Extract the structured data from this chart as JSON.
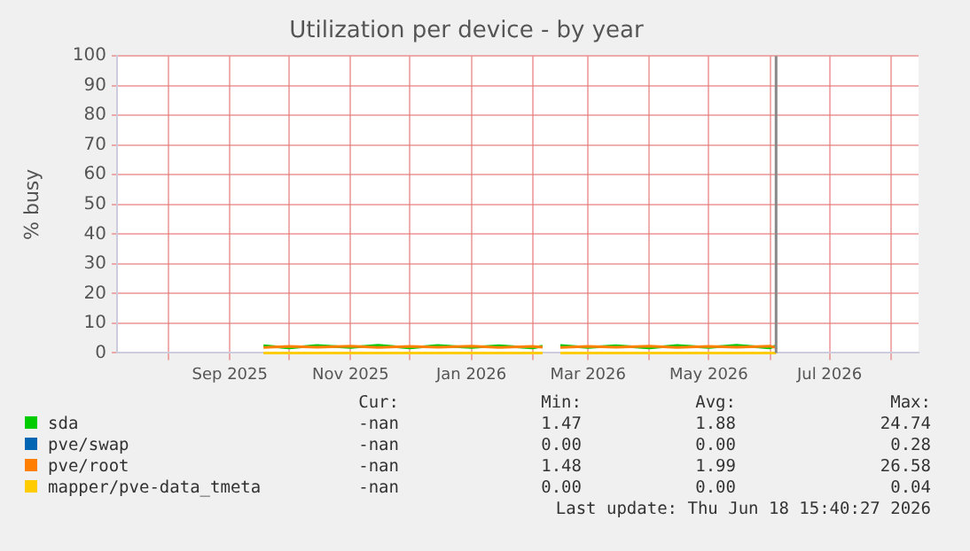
{
  "chart_data": {
    "type": "line",
    "title": "Utilization per device - by year",
    "ylabel": "% busy",
    "x": [
      "2025-09-18",
      "2025-10-01",
      "2025-10-15",
      "2025-11-01",
      "2025-11-15",
      "2025-12-01",
      "2025-12-15",
      "2026-01-01",
      "2026-01-15",
      "2026-02-01",
      "2026-02-06",
      "2026-02-10",
      "2026-02-15",
      "2026-03-01",
      "2026-03-15",
      "2026-04-01",
      "2026-04-15",
      "2026-05-01",
      "2026-05-15",
      "2026-06-01",
      "2026-06-04"
    ],
    "series": [
      {
        "name": "sda",
        "color": "#00cc00",
        "values": [
          2.4,
          1.7,
          2.5,
          1.8,
          2.6,
          1.7,
          2.5,
          1.8,
          2.4,
          1.7,
          2.3,
          null,
          2.5,
          1.8,
          2.4,
          1.7,
          2.5,
          1.8,
          2.6,
          1.7,
          2.4
        ]
      },
      {
        "name": "pve/swap",
        "color": "#0066b3",
        "values": [
          null,
          null,
          null,
          null,
          null,
          null,
          null,
          null,
          null,
          null,
          null,
          null,
          null,
          null,
          null,
          null,
          null,
          null,
          null,
          null,
          null
        ]
      },
      {
        "name": "pve/root",
        "color": "#ff8000",
        "values": [
          1.8,
          2.2,
          1.9,
          2.3,
          1.8,
          2.2,
          1.9,
          2.3,
          1.8,
          2.2,
          1.9,
          null,
          1.8,
          2.2,
          1.9,
          2.3,
          1.8,
          2.2,
          1.9,
          2.3,
          1.8
        ]
      },
      {
        "name": "mapper/pve-data_tmeta",
        "color": "#ffcc00",
        "values": [
          0,
          0,
          0,
          0,
          0,
          0,
          0,
          0,
          0,
          0,
          0,
          null,
          0,
          0,
          0,
          0,
          0,
          0,
          0,
          0,
          0
        ]
      }
    ],
    "xlim": [
      "2025-07-06",
      "2026-08-15"
    ],
    "xticks": [
      {
        "value": "2025-08-01",
        "label": null
      },
      {
        "value": "2025-09-01",
        "label": "Sep 2025"
      },
      {
        "value": "2025-10-01",
        "label": null
      },
      {
        "value": "2025-11-01",
        "label": "Nov 2025"
      },
      {
        "value": "2025-12-01",
        "label": null
      },
      {
        "value": "2026-01-01",
        "label": "Jan 2026"
      },
      {
        "value": "2026-02-01",
        "label": null
      },
      {
        "value": "2026-03-01",
        "label": "Mar 2026"
      },
      {
        "value": "2026-04-01",
        "label": null
      },
      {
        "value": "2026-05-01",
        "label": "May 2026"
      },
      {
        "value": "2026-06-01",
        "label": null
      },
      {
        "value": "2026-07-01",
        "label": "Jul 2026"
      },
      {
        "value": "2026-08-01",
        "label": null
      }
    ],
    "ylim": [
      0,
      100
    ],
    "yticks": [
      0,
      10,
      20,
      30,
      40,
      50,
      60,
      70,
      80,
      90,
      100
    ],
    "grid": true,
    "marker": "none",
    "line_style": "solid",
    "legend": "bottom",
    "ref_lines": [
      {
        "axis": "x",
        "value": "2026-06-04",
        "color": "#888888"
      }
    ],
    "annotations": [
      "Cur:",
      "Min:",
      "Avg:",
      "Max:",
      "-nan",
      "1.47",
      "1.88",
      "24.74",
      "-nan",
      "0.00",
      "0.00",
      "0.28",
      "-nan",
      "1.48",
      "1.99",
      "26.58",
      "-nan",
      "0.00",
      "0.00",
      "0.04",
      "Last update: Thu Jun 18 15:40:27 2026"
    ]
  }
}
